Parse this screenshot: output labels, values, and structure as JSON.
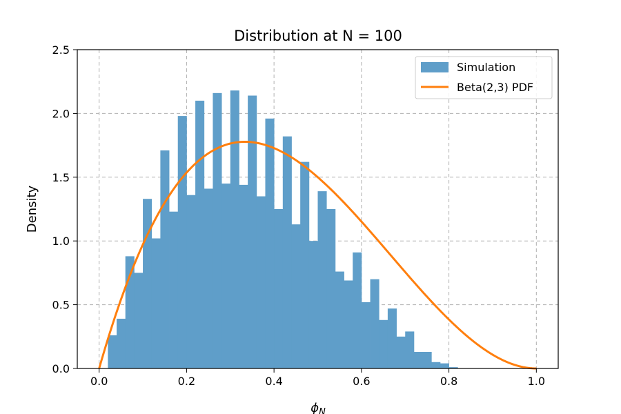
{
  "chart_data": {
    "type": "bar",
    "title": "Distribution at N = 100",
    "xlabel_base": "ϕ",
    "xlabel_sub": "N",
    "ylabel": "Density",
    "xlim": [
      -0.05,
      1.05
    ],
    "ylim": [
      0,
      2.5
    ],
    "xticks": [
      "0.0",
      "0.2",
      "0.4",
      "0.6",
      "0.8",
      "1.0"
    ],
    "yticks": [
      "0.0",
      "0.5",
      "1.0",
      "1.5",
      "2.0",
      "2.5"
    ],
    "grid": true,
    "legend_position": "top-right",
    "bin_width": 0.02,
    "bins_start": 0.02,
    "histogram_values": [
      0.26,
      0.39,
      0.88,
      0.75,
      1.33,
      1.02,
      1.71,
      1.23,
      1.98,
      1.36,
      2.1,
      1.41,
      2.16,
      1.45,
      2.18,
      1.44,
      2.14,
      1.35,
      1.96,
      1.25,
      1.82,
      1.13,
      1.62,
      1.0,
      1.39,
      1.25,
      0.76,
      0.69,
      0.91,
      0.52,
      0.7,
      0.38,
      0.47,
      0.25,
      0.29,
      0.13,
      0.13,
      0.05,
      0.04,
      0.01
    ],
    "series": [
      {
        "name": "Simulation",
        "type": "histogram",
        "color": "#5f9ec9"
      },
      {
        "name": "Beta(2,3) PDF",
        "type": "line",
        "color": "#ff7f0e",
        "alpha": 2,
        "beta": 3
      }
    ]
  }
}
